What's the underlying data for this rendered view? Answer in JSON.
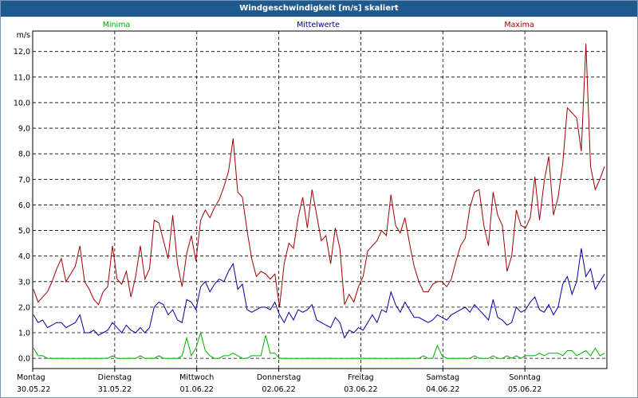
{
  "window": {
    "title": "Windgeschwindigkeit [m/s] skaliert"
  },
  "colors": {
    "minima": "#00b000",
    "mittelwerte": "#0000a0",
    "maxima": "#a00000",
    "grid": "#000000",
    "titlebar": "#1f5a8e"
  },
  "chart_data": {
    "type": "line",
    "title": "Windgeschwindigkeit [m/s] skaliert",
    "ylabel": "m/s",
    "xlabel": "",
    "ylim": [
      -0.4,
      12.8
    ],
    "yticks": [
      "0,0",
      "1,0",
      "2,0",
      "3,0",
      "4,0",
      "5,0",
      "6,0",
      "7,0",
      "8,0",
      "9,0",
      "10,0",
      "11,0",
      "12,0"
    ],
    "yticks_values": [
      0,
      1,
      2,
      3,
      4,
      5,
      6,
      7,
      8,
      9,
      10,
      11,
      12
    ],
    "x_range_days": 7,
    "grid": true,
    "legend": [
      {
        "name": "Minima",
        "position": "top-left"
      },
      {
        "name": "Mittelwerte",
        "position": "top-center"
      },
      {
        "name": "Maxima",
        "position": "top-right"
      }
    ],
    "x_ticks": [
      {
        "day": "Montag",
        "date": "30.05.22"
      },
      {
        "day": "Dienstag",
        "date": "31.05.22"
      },
      {
        "day": "Mittwoch",
        "date": "01.06.22"
      },
      {
        "day": "Donnerstag",
        "date": "02.06.22"
      },
      {
        "day": "Freitag",
        "date": "03.06.22"
      },
      {
        "day": "Samstag",
        "date": "04.06.22"
      },
      {
        "day": "Sonntag",
        "date": "05.06.22"
      }
    ],
    "series": [
      {
        "name": "Maxima",
        "values": [
          2.7,
          2.2,
          2.4,
          2.6,
          3.0,
          3.5,
          3.9,
          3.0,
          3.3,
          3.6,
          4.4,
          3.0,
          2.7,
          2.3,
          2.1,
          2.6,
          2.8,
          4.4,
          3.1,
          2.9,
          3.4,
          2.4,
          3.2,
          4.4,
          3.1,
          3.5,
          5.4,
          5.3,
          4.6,
          3.9,
          5.6,
          3.7,
          2.8,
          4.1,
          4.8,
          3.8,
          5.4,
          5.8,
          5.5,
          5.9,
          6.2,
          6.7,
          7.3,
          8.6,
          6.5,
          6.3,
          5.0,
          3.9,
          3.2,
          3.4,
          3.3,
          3.1,
          3.3,
          2.0,
          3.7,
          4.5,
          4.3,
          5.5,
          6.3,
          5.1,
          6.6,
          5.6,
          4.6,
          4.8,
          3.7,
          5.1,
          4.3,
          2.1,
          2.5,
          2.2,
          2.8,
          3.2,
          4.2,
          4.4,
          4.6,
          5.0,
          4.8,
          6.4,
          5.2,
          4.9,
          5.5,
          4.5,
          3.6,
          3.0,
          2.6,
          2.6,
          2.9,
          3.0,
          3.0,
          2.8,
          3.1,
          3.8,
          4.4,
          4.7,
          5.9,
          6.5,
          6.6,
          5.2,
          4.4,
          6.5,
          5.6,
          5.2,
          3.4,
          4.0,
          5.8,
          5.2,
          5.1,
          5.5,
          7.1,
          5.4,
          6.9,
          7.9,
          5.6,
          6.3,
          7.6,
          9.8,
          9.6,
          9.4,
          8.1,
          12.3,
          7.5,
          6.6,
          7.0,
          7.5
        ]
      },
      {
        "name": "Mittelwerte",
        "values": [
          1.7,
          1.4,
          1.5,
          1.2,
          1.3,
          1.4,
          1.4,
          1.2,
          1.3,
          1.4,
          1.7,
          1.0,
          1.0,
          1.1,
          0.9,
          1.0,
          1.1,
          1.4,
          1.2,
          1.0,
          1.3,
          1.1,
          1.0,
          1.2,
          1.0,
          1.2,
          2.0,
          2.2,
          2.1,
          1.7,
          1.9,
          1.5,
          1.4,
          2.3,
          2.2,
          1.9,
          2.8,
          3.0,
          2.6,
          2.9,
          3.1,
          3.0,
          3.4,
          3.7,
          2.7,
          2.9,
          1.9,
          1.8,
          1.9,
          2.0,
          2.0,
          1.9,
          2.2,
          1.7,
          1.4,
          1.8,
          1.5,
          1.9,
          1.8,
          1.9,
          2.1,
          1.5,
          1.4,
          1.3,
          1.2,
          1.6,
          1.4,
          0.8,
          1.1,
          1.0,
          1.2,
          1.1,
          1.4,
          1.7,
          1.4,
          1.9,
          1.8,
          2.6,
          2.1,
          1.8,
          2.2,
          1.9,
          1.6,
          1.6,
          1.5,
          1.4,
          1.5,
          1.7,
          1.6,
          1.5,
          1.7,
          1.8,
          1.9,
          2.0,
          1.8,
          2.1,
          1.9,
          1.7,
          1.5,
          2.3,
          1.6,
          1.5,
          1.3,
          1.4,
          2.0,
          1.8,
          1.9,
          2.2,
          2.4,
          1.9,
          1.8,
          2.1,
          1.7,
          2.0,
          2.9,
          3.2,
          2.5,
          3.0,
          4.3,
          3.2,
          3.5,
          2.7,
          3.0,
          3.3
        ]
      },
      {
        "name": "Minima",
        "values": [
          0.4,
          0.1,
          0.1,
          0.0,
          0.0,
          0.0,
          0.0,
          0.0,
          0.0,
          0.0,
          0.0,
          0.0,
          0.0,
          0.0,
          0.0,
          0.0,
          0.0,
          0.1,
          0.0,
          0.0,
          0.0,
          0.0,
          0.0,
          0.1,
          0.0,
          0.0,
          0.0,
          0.1,
          0.0,
          0.0,
          0.0,
          0.0,
          0.1,
          0.8,
          0.1,
          0.4,
          1.0,
          0.3,
          0.1,
          0.0,
          0.0,
          0.1,
          0.1,
          0.2,
          0.1,
          0.0,
          0.0,
          0.1,
          0.1,
          0.1,
          0.9,
          0.2,
          0.2,
          0.0,
          0.0,
          0.0,
          0.0,
          0.0,
          0.0,
          0.0,
          0.0,
          0.0,
          0.0,
          0.0,
          0.0,
          0.0,
          0.0,
          0.0,
          0.0,
          0.0,
          0.0,
          0.0,
          0.0,
          0.0,
          0.0,
          0.0,
          0.0,
          0.0,
          0.0,
          0.0,
          0.0,
          0.0,
          0.0,
          0.0,
          0.1,
          0.0,
          0.0,
          0.5,
          0.1,
          0.0,
          0.0,
          0.0,
          0.0,
          0.0,
          0.0,
          0.1,
          0.0,
          0.0,
          0.0,
          0.1,
          0.0,
          0.0,
          0.1,
          0.0,
          0.1,
          0.0,
          0.1,
          0.1,
          0.1,
          0.2,
          0.1,
          0.2,
          0.2,
          0.2,
          0.1,
          0.3,
          0.3,
          0.1,
          0.2,
          0.3,
          0.1,
          0.4,
          0.1,
          0.2
        ]
      }
    ]
  }
}
